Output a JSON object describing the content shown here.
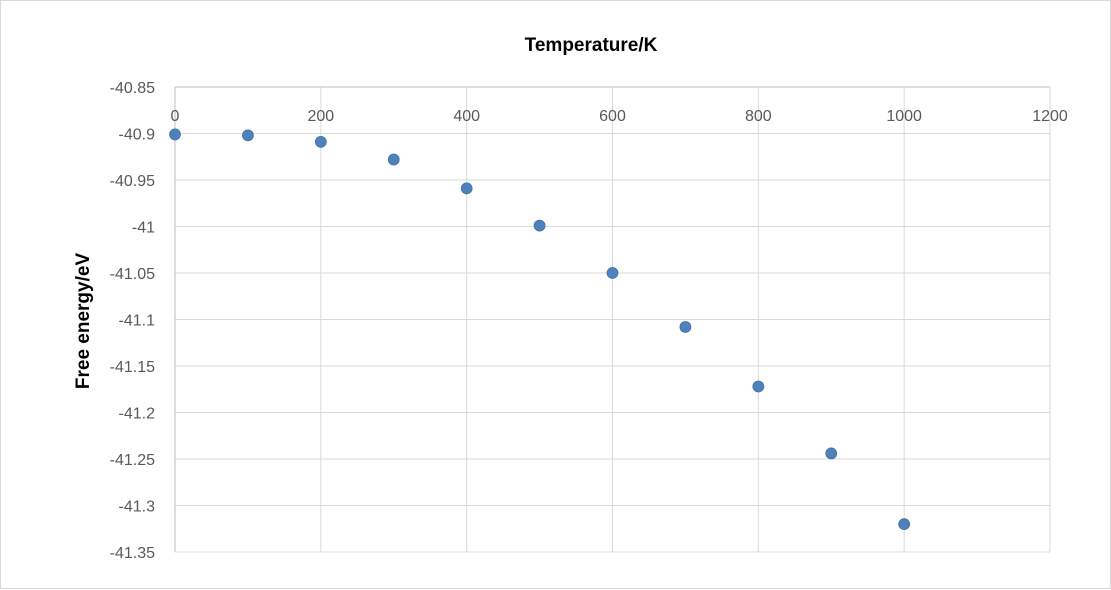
{
  "chart_data": {
    "type": "scatter",
    "title": "",
    "xlabel": "Temperature/K",
    "ylabel": "Free energy/eV",
    "xlim": [
      0,
      1200
    ],
    "ylim": [
      -41.35,
      -40.85
    ],
    "x_ticks": [
      "0",
      "200",
      "400",
      "600",
      "800",
      "1000",
      "1200"
    ],
    "y_ticks": [
      "-40.85",
      "-40.9",
      "-40.95",
      "-41",
      "-41.05",
      "-41.1",
      "-41.15",
      "-41.2",
      "-41.25",
      "-41.3",
      "-41.35"
    ],
    "x_axis_position": "top",
    "grid": true,
    "legend": "none",
    "series": [
      {
        "x": [
          0,
          100,
          200,
          300,
          400,
          500,
          600,
          700,
          800,
          900,
          1000
        ],
        "y": [
          -40.901,
          -40.902,
          -40.909,
          -40.928,
          -40.959,
          -40.999,
          -41.05,
          -41.108,
          -41.172,
          -41.244,
          -41.32
        ]
      }
    ],
    "marker_color": "#4f81bd",
    "grid_color": "#d9d9d9",
    "text_color": "#595959"
  }
}
